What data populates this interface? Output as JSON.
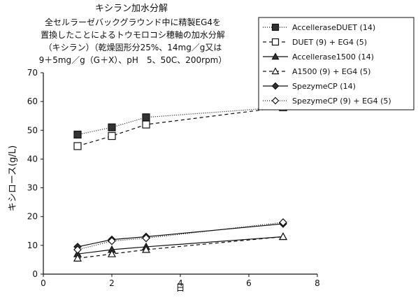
{
  "chart_data": {
    "type": "line",
    "title": "キシラン加水分解",
    "subtitle_lines": [
      "全セルラーゼバックグラウンド中に精製EG4を",
      "置換したことによるトウモロコシ穂軸の加水分解",
      "（キシラン）（乾燥固形分25%、14mg／g又は",
      "9＋5mg／g（G＋X）、pH　5、50C、200rpm）"
    ],
    "xlabel": "日",
    "ylabel": "キシロース(g/L)",
    "xlim": [
      0,
      8
    ],
    "ylim": [
      0,
      70
    ],
    "xticks": [
      "0",
      "2",
      "4",
      "6",
      "8"
    ],
    "yticks": [
      "0",
      "10",
      "20",
      "30",
      "40",
      "50",
      "60",
      "70"
    ],
    "grid": false,
    "legend_position": "top-right",
    "x": [
      1,
      2,
      3,
      7
    ],
    "series": [
      {
        "name": "AccelleraseDUET (14)",
        "values": [
          48.5,
          51,
          54.5,
          58
        ],
        "marker": "square-filled",
        "dash": "1,2"
      },
      {
        "name": "DUET (9) + EG4 (5)",
        "values": [
          44.5,
          48,
          52,
          58
        ],
        "marker": "square-open",
        "dash": "5,4"
      },
      {
        "name": "Accellerase1500 (14)",
        "values": [
          7,
          8.5,
          9.5,
          13
        ],
        "marker": "triangle-filled",
        "dash": ""
      },
      {
        "name": "A1500 (9) + EG4 (5)",
        "values": [
          5.5,
          7,
          8.5,
          13
        ],
        "marker": "triangle-open",
        "dash": "5,4"
      },
      {
        "name": "SpezymeCP (14)",
        "values": [
          9.5,
          12,
          13,
          17.5
        ],
        "marker": "diamond-filled",
        "dash": ""
      },
      {
        "name": "SpezymeCP (9) + EG4 (5)",
        "values": [
          8.5,
          11.5,
          12.5,
          18
        ],
        "marker": "diamond-open",
        "dash": "1,2"
      }
    ]
  }
}
